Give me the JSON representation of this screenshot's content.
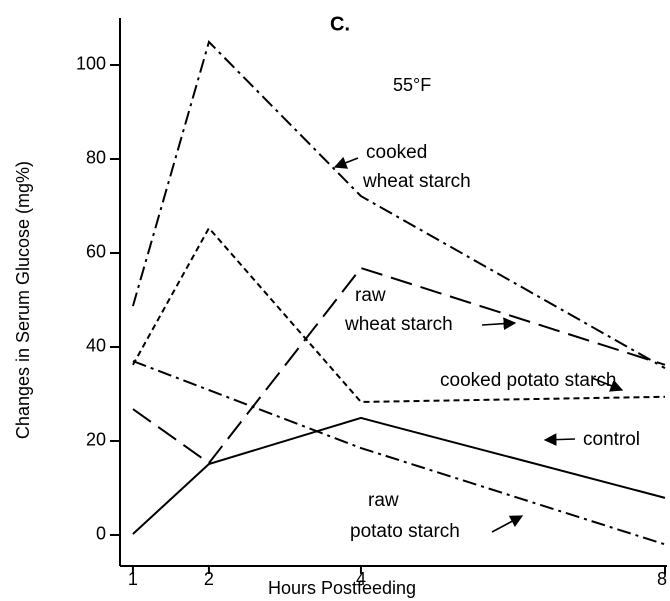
{
  "chart_data": {
    "type": "line",
    "title": "C.",
    "subtitle": "55°F",
    "x_label": "Hours Postfeeding",
    "y_label": "Changes in Serum Glucose (mg%)",
    "x": [
      1,
      2,
      4,
      8
    ],
    "xlim": [
      0.83,
      8
    ],
    "xticks": [
      1,
      2,
      4,
      8
    ],
    "ylim": [
      -6.6,
      110
    ],
    "yticks": [
      0,
      20,
      40,
      60,
      80,
      100
    ],
    "series": [
      {
        "name": "cooked wheat starch",
        "color": "#000000",
        "values": [
          48.7,
          104.9,
          72.1,
          35.5
        ]
      },
      {
        "name": "raw wheat starch",
        "color": "#000000",
        "values": [
          26.8,
          15.3,
          56.8,
          36.2
        ]
      },
      {
        "name": "cooked potato starch",
        "color": "#000000",
        "values": [
          36.2,
          65.3,
          28.3,
          29.4
        ]
      },
      {
        "name": "control",
        "color": "#000000",
        "values": [
          0.2,
          15.1,
          24.9,
          7.9
        ]
      },
      {
        "name": "raw potato starch",
        "color": "#000000",
        "values": [
          37,
          null,
          18.5,
          -2
        ]
      }
    ],
    "annotations": [
      "cooked",
      "wheat starch",
      "raw",
      "wheat starch",
      "cooked potato starch",
      "control",
      "raw",
      "potato starch"
    ]
  }
}
